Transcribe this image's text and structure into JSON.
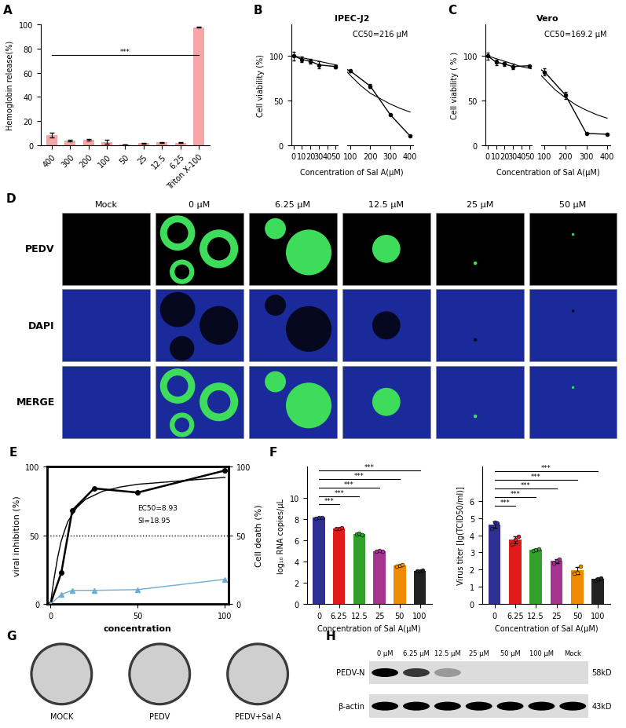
{
  "chart_data": [
    {
      "panel": "A",
      "type": "bar",
      "categories": [
        "400",
        "300",
        "200",
        "100",
        "50",
        "25",
        "12.5",
        "6.25",
        "Triton X-100"
      ],
      "values": [
        8,
        3.5,
        4.5,
        2.5,
        0.3,
        1.5,
        2.2,
        1.8,
        98
      ],
      "errors": [
        2,
        0.5,
        0.6,
        1.5,
        0.2,
        0.3,
        0.4,
        0.3,
        0.5
      ],
      "color": "#f4a6a6",
      "ylabel": "Hemoglobin release(%)",
      "ylim": [
        0,
        100
      ],
      "yticks": [
        0,
        20,
        40,
        60,
        80,
        100
      ],
      "significance": [
        {
          "from": "400",
          "to": "Triton X-100",
          "height": 75,
          "label": "***"
        }
      ]
    },
    {
      "panel": "B",
      "type": "line",
      "title": "IPEC-J2",
      "xlabel": "Concentration of Sal A(μM)",
      "ylabel": "Cell viability (%)",
      "annotation": "CC50=216 μM",
      "x_segments": [
        {
          "xlim": [
            -3,
            53
          ],
          "xticks": [
            0,
            10,
            20,
            30,
            40,
            50
          ]
        },
        {
          "xlim": [
            85,
            415
          ],
          "xticks": [
            100,
            200,
            300,
            400
          ]
        }
      ],
      "ylim": [
        0,
        135
      ],
      "yticks": [
        0,
        50,
        100
      ],
      "series": [
        {
          "x": [
            0,
            10,
            20,
            30,
            50,
            100,
            200,
            300,
            400
          ],
          "values": [
            100,
            96,
            94,
            90,
            88,
            83,
            66,
            34,
            10
          ],
          "errors": [
            5,
            3,
            3,
            4,
            2,
            1,
            2,
            1,
            1
          ],
          "color": "#000000",
          "marker": "circle",
          "line_style": "solid"
        },
        {
          "x": [
            0,
            10,
            20,
            30,
            40,
            50,
            100,
            150,
            200,
            250,
            300,
            350,
            400
          ],
          "values": [
            100,
            98,
            96,
            94,
            92,
            90,
            78,
            67,
            58,
            52,
            46,
            41,
            37
          ],
          "color": "#000000",
          "marker": "none",
          "line_style": "solid"
        }
      ]
    },
    {
      "panel": "C",
      "type": "line",
      "title": "Vero",
      "xlabel": "Concentration of Sal A(μM)",
      "ylabel": "Cell viability ( % )",
      "annotation": "CC50=169.2 μM",
      "x_segments": [
        {
          "xlim": [
            -3,
            53
          ],
          "xticks": [
            0,
            10,
            20,
            30,
            40,
            50
          ]
        },
        {
          "xlim": [
            85,
            415
          ],
          "xticks": [
            100,
            200,
            300,
            400
          ]
        }
      ],
      "ylim": [
        0,
        135
      ],
      "yticks": [
        0,
        50,
        100
      ],
      "series": [
        {
          "x": [
            0,
            10,
            20,
            30,
            50,
            100,
            200,
            300,
            400
          ],
          "values": [
            100,
            93,
            91,
            88,
            89,
            82,
            56,
            13,
            12
          ],
          "errors": [
            4,
            3,
            2,
            3,
            1,
            4,
            4,
            1,
            1
          ],
          "color": "#000000",
          "marker": "circle",
          "line_style": "solid"
        },
        {
          "x": [
            0,
            10,
            20,
            30,
            40,
            50,
            100,
            150,
            200,
            250,
            300,
            350,
            400
          ],
          "values": [
            100,
            97,
            94,
            91,
            88,
            86,
            74,
            62,
            53,
            45,
            39,
            34,
            30
          ],
          "color": "#000000",
          "marker": "none",
          "line_style": "solid"
        }
      ]
    },
    {
      "panel": "E",
      "type": "line",
      "xlabel": "concentration",
      "ylabel": "viral inhibition (%)",
      "y2label": "Cell death (%)",
      "annotations": [
        "EC50=8.93",
        "SI=18.95"
      ],
      "xlim": [
        -2,
        102
      ],
      "xticks": [
        0,
        50,
        100
      ],
      "ylim": [
        0,
        100
      ],
      "yticks": [
        0,
        50,
        100
      ],
      "y2lim": [
        0,
        100
      ],
      "y2ticks": [
        0,
        50,
        100
      ],
      "reference_line": 50,
      "series": [
        {
          "x": [
            0,
            6.25,
            12.5,
            25,
            50,
            100
          ],
          "values": [
            0,
            23,
            68,
            84,
            81,
            97
          ],
          "color": "#000000",
          "marker": "circle",
          "line_style": "solid"
        },
        {
          "x": [
            0,
            2,
            4,
            6,
            8,
            10,
            15,
            20,
            30,
            40,
            50,
            60,
            70,
            80,
            90,
            100
          ],
          "values": [
            0,
            18,
            33,
            45,
            53,
            60,
            70,
            76,
            82,
            85,
            87,
            88,
            89,
            90,
            91,
            92
          ],
          "color": "#000000",
          "marker": "none",
          "line_style": "solid"
        },
        {
          "x": [
            0,
            6.25,
            12.5,
            25,
            50,
            100
          ],
          "values": [
            0,
            7,
            10,
            10,
            10.5,
            18
          ],
          "color": "#6baed6",
          "marker": "triangle",
          "line_style": "solid",
          "axis": "y2"
        }
      ]
    },
    {
      "panel": "F",
      "type": "bar",
      "categories": [
        "0",
        "6.25",
        "12.5",
        "25",
        "50",
        "100"
      ],
      "values": [
        8.15,
        7.15,
        6.62,
        5.0,
        3.65,
        3.15
      ],
      "errors": [
        0.05,
        0.05,
        0.08,
        0.05,
        0.05,
        0.05
      ],
      "replicates": [
        [
          8.1,
          8.15,
          8.18
        ],
        [
          7.1,
          7.15,
          7.2
        ],
        [
          6.6,
          6.7,
          6.55
        ],
        [
          5.0,
          5.05,
          4.95
        ],
        [
          3.6,
          3.65,
          3.7
        ],
        [
          3.15,
          3.1,
          3.2
        ]
      ],
      "colors": [
        "#2e3192",
        "#e31a1c",
        "#33a02c",
        "#a4348f",
        "#f08a00",
        "#222222"
      ],
      "xlabel": "Concentration of Sal A(μM)",
      "ylabel": "log₁₀ RNA copies/μL",
      "ylim": [
        0,
        13
      ],
      "yticks": [
        0,
        2,
        4,
        6,
        8,
        10
      ],
      "significance": [
        {
          "from": "0",
          "to": "6.25",
          "height": 9.4,
          "label": "***"
        },
        {
          "from": "0",
          "to": "12.5",
          "height": 10.2,
          "label": "***"
        },
        {
          "from": "0",
          "to": "25",
          "height": 11.0,
          "label": "***"
        },
        {
          "from": "0",
          "to": "50",
          "height": 11.8,
          "label": "***"
        },
        {
          "from": "0",
          "to": "100",
          "height": 12.6,
          "label": "***"
        }
      ]
    },
    {
      "type": "bar",
      "categories": [
        "0",
        "6.25",
        "12.5",
        "25",
        "50",
        "100"
      ],
      "values": [
        4.62,
        3.73,
        3.15,
        2.5,
        1.95,
        1.45
      ],
      "errors": [
        0.2,
        0.2,
        0.05,
        0.1,
        0.2,
        0.05
      ],
      "replicates": [
        [
          4.4,
          4.75,
          4.7
        ],
        [
          3.5,
          3.75,
          3.95
        ],
        [
          3.1,
          3.15,
          3.2
        ],
        [
          2.4,
          2.5,
          2.6
        ],
        [
          1.8,
          1.85,
          2.2
        ],
        [
          1.4,
          1.45,
          1.5
        ]
      ],
      "colors": [
        "#2e3192",
        "#e31a1c",
        "#33a02c",
        "#a4348f",
        "#f08a00",
        "#222222"
      ],
      "xlabel": "Concentration of Sal A(μM)",
      "ylabel": "Virus titer [lg(TCID50/ml)]",
      "ylim": [
        0,
        8
      ],
      "yticks": [
        0,
        1,
        2,
        3,
        4,
        5,
        6
      ],
      "significance": [
        {
          "from": "0",
          "to": "6.25",
          "height": 5.7,
          "label": "***"
        },
        {
          "from": "0",
          "to": "12.5",
          "height": 6.2,
          "label": "***"
        },
        {
          "from": "0",
          "to": "25",
          "height": 6.7,
          "label": "***"
        },
        {
          "from": "0",
          "to": "50",
          "height": 7.2,
          "label": "***"
        },
        {
          "from": "0",
          "to": "100",
          "height": 7.7,
          "label": "***"
        }
      ]
    }
  ],
  "image_panels": [
    {
      "panel": "D",
      "kind": "fluorescence",
      "columns": [
        "Mock",
        "0 μM",
        "6.25 μM",
        "12.5 μM",
        "25 μM",
        "50 μM"
      ],
      "rows": [
        "PEDV",
        "DAPI",
        "MERGE"
      ]
    },
    {
      "panel": "G",
      "kind": "micrograph",
      "labels": [
        "MOCK",
        "PEDV",
        "PEDV+Sal A"
      ]
    },
    {
      "panel": "H",
      "kind": "blot",
      "columns": [
        "0 μM",
        "6.25 μM",
        "12.5 μM",
        "25 μM",
        "50 μM",
        "100 μM",
        "Mock"
      ],
      "rows": [
        {
          "label": "PEDV-N",
          "size": "58kD",
          "band_intensity": [
            1.0,
            0.75,
            0.3,
            0,
            0,
            0,
            0
          ]
        },
        {
          "label": "β-actin",
          "size": "43kD",
          "band_intensity": [
            1,
            1,
            1,
            1,
            1,
            1,
            1
          ]
        }
      ]
    }
  ]
}
